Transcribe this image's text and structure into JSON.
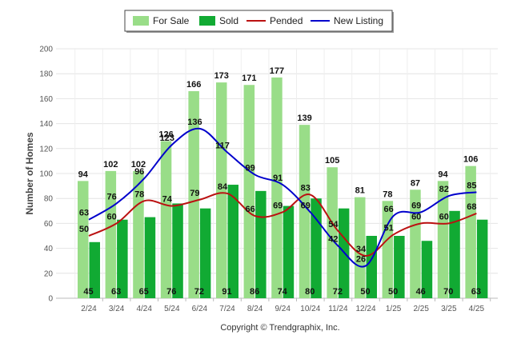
{
  "chart_data": {
    "type": "bar",
    "categories": [
      "2/24",
      "3/24",
      "4/24",
      "5/24",
      "6/24",
      "7/24",
      "8/24",
      "9/24",
      "10/24",
      "11/24",
      "12/24",
      "1/25",
      "2/25",
      "3/25",
      "4/25"
    ],
    "series": [
      {
        "name": "For Sale",
        "kind": "bar",
        "color": "#99dd88",
        "values": [
          94,
          102,
          102,
          126,
          166,
          173,
          171,
          177,
          139,
          105,
          81,
          78,
          87,
          94,
          106
        ]
      },
      {
        "name": "Sold",
        "kind": "bar",
        "color": "#11aa33",
        "values": [
          45,
          63,
          65,
          76,
          72,
          91,
          86,
          74,
          80,
          72,
          50,
          50,
          46,
          70,
          63
        ]
      },
      {
        "name": "Pended",
        "kind": "line",
        "color": "#bb1111",
        "values": [
          50,
          60,
          78,
          74,
          79,
          84,
          66,
          69,
          83,
          54,
          34,
          51,
          60,
          60,
          68
        ]
      },
      {
        "name": "New Listing",
        "kind": "line",
        "color": "#0000cc",
        "values": [
          63,
          76,
          96,
          123,
          136,
          117,
          99,
          91,
          69,
          42,
          26,
          66,
          69,
          82,
          85
        ]
      }
    ],
    "title": "",
    "xlabel": "",
    "ylabel": "Number of Homes",
    "ylim": [
      0,
      200
    ],
    "yticks": [
      0,
      20,
      40,
      60,
      80,
      100,
      120,
      140,
      160,
      180,
      200
    ],
    "grid": true,
    "legend_position": "top-center",
    "footer": "Copyright © Trendgraphix, Inc."
  }
}
